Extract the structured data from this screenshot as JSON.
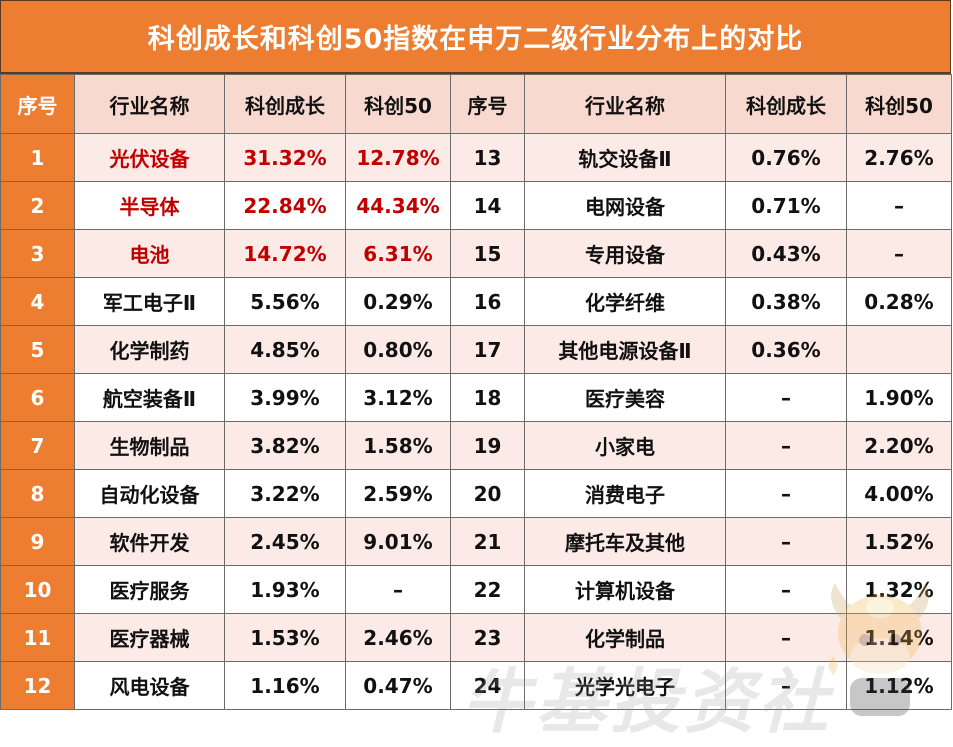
{
  "title": "科创成长和科创50指数在申万二级行业分布上的对比",
  "headers": [
    "序号",
    "行业名称",
    "科创成长",
    "科创50",
    "序号",
    "行业名称",
    "科创成长",
    "科创50"
  ],
  "colors": {
    "accent": "#ED7D31",
    "header_bg": "#F8D9CF",
    "stripe": "#FBEAE5",
    "highlight_text": "#C00000"
  },
  "rows": [
    {
      "l": {
        "no": "1",
        "name": "光伏设备",
        "growth": "31.32%",
        "kc50": "12.78%",
        "highlight": true
      },
      "r": {
        "no": "13",
        "name": "轨交设备Ⅱ",
        "growth": "0.76%",
        "kc50": "2.76%"
      }
    },
    {
      "l": {
        "no": "2",
        "name": "半导体",
        "growth": "22.84%",
        "kc50": "44.34%",
        "highlight": true
      },
      "r": {
        "no": "14",
        "name": "电网设备",
        "growth": "0.71%",
        "kc50": "–"
      }
    },
    {
      "l": {
        "no": "3",
        "name": "电池",
        "growth": "14.72%",
        "kc50": "6.31%",
        "highlight": true
      },
      "r": {
        "no": "15",
        "name": "专用设备",
        "growth": "0.43%",
        "kc50": "–"
      }
    },
    {
      "l": {
        "no": "4",
        "name": "军工电子Ⅱ",
        "growth": "5.56%",
        "kc50": "0.29%"
      },
      "r": {
        "no": "16",
        "name": "化学纤维",
        "growth": "0.38%",
        "kc50": "0.28%"
      }
    },
    {
      "l": {
        "no": "5",
        "name": "化学制药",
        "growth": "4.85%",
        "kc50": "0.80%"
      },
      "r": {
        "no": "17",
        "name": "其他电源设备Ⅱ",
        "growth": "0.36%",
        "kc50": ""
      }
    },
    {
      "l": {
        "no": "6",
        "name": "航空装备Ⅱ",
        "growth": "3.99%",
        "kc50": "3.12%"
      },
      "r": {
        "no": "18",
        "name": "医疗美容",
        "growth": "–",
        "kc50": "1.90%"
      }
    },
    {
      "l": {
        "no": "7",
        "name": "生物制品",
        "growth": "3.82%",
        "kc50": "1.58%"
      },
      "r": {
        "no": "19",
        "name": "小家电",
        "growth": "–",
        "kc50": "2.20%"
      }
    },
    {
      "l": {
        "no": "8",
        "name": "自动化设备",
        "growth": "3.22%",
        "kc50": "2.59%"
      },
      "r": {
        "no": "20",
        "name": "消费电子",
        "growth": "–",
        "kc50": "4.00%"
      }
    },
    {
      "l": {
        "no": "9",
        "name": "软件开发",
        "growth": "2.45%",
        "kc50": "9.01%"
      },
      "r": {
        "no": "21",
        "name": "摩托车及其他",
        "growth": "–",
        "kc50": "1.52%"
      }
    },
    {
      "l": {
        "no": "10",
        "name": "医疗服务",
        "growth": "1.93%",
        "kc50": "–"
      },
      "r": {
        "no": "22",
        "name": "计算机设备",
        "growth": "–",
        "kc50": "1.32%"
      }
    },
    {
      "l": {
        "no": "11",
        "name": "医疗器械",
        "growth": "1.53%",
        "kc50": "2.46%"
      },
      "r": {
        "no": "23",
        "name": "化学制品",
        "growth": "–",
        "kc50": "1.14%"
      }
    },
    {
      "l": {
        "no": "12",
        "name": "风电设备",
        "growth": "1.16%",
        "kc50": "0.47%"
      },
      "r": {
        "no": "24",
        "name": "光学光电子",
        "growth": "–",
        "kc50": "1.12%"
      }
    }
  ],
  "watermark": {
    "text": "牛基投资社",
    "icon": "cow-mascot-icon"
  }
}
